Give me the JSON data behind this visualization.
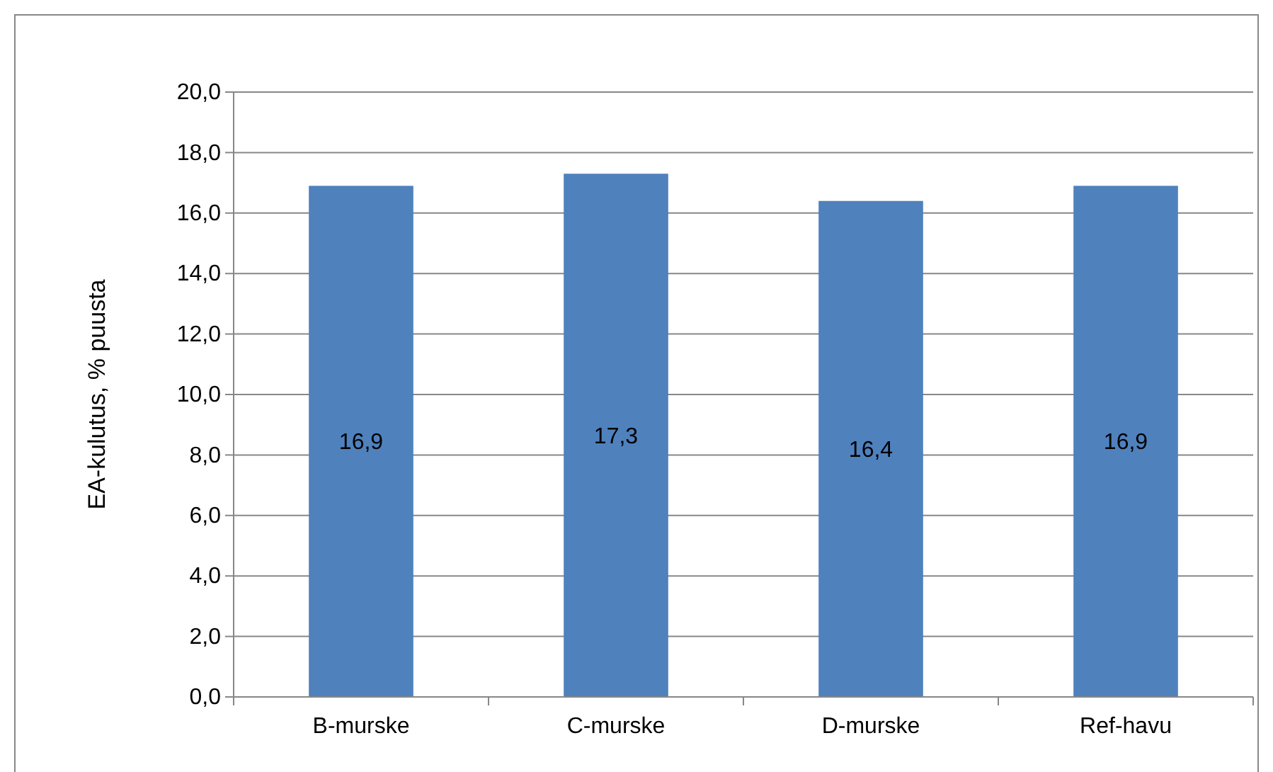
{
  "chart_data": {
    "type": "bar",
    "ylabel": "EA-kulutus, % puusta",
    "categories": [
      "B-murske",
      "C-murske",
      "D-murske",
      "Ref-havu"
    ],
    "values": [
      16.9,
      17.3,
      16.4,
      16.9
    ],
    "value_labels": [
      "16,9",
      "17,3",
      "16,4",
      "16,9"
    ],
    "color": "#4f81bd",
    "ylim": [
      0,
      20
    ],
    "yticks": [
      {
        "value": 0,
        "label": "0,0"
      },
      {
        "value": 2,
        "label": "2,0"
      },
      {
        "value": 4,
        "label": "4,0"
      },
      {
        "value": 6,
        "label": "6,0"
      },
      {
        "value": 8,
        "label": "8,0"
      },
      {
        "value": 10,
        "label": "10,0"
      },
      {
        "value": 12,
        "label": "12,0"
      },
      {
        "value": 14,
        "label": "14,0"
      },
      {
        "value": 16,
        "label": "16,0"
      },
      {
        "value": 18,
        "label": "18,0"
      },
      {
        "value": 20,
        "label": "20,0"
      }
    ],
    "grid": "y"
  }
}
